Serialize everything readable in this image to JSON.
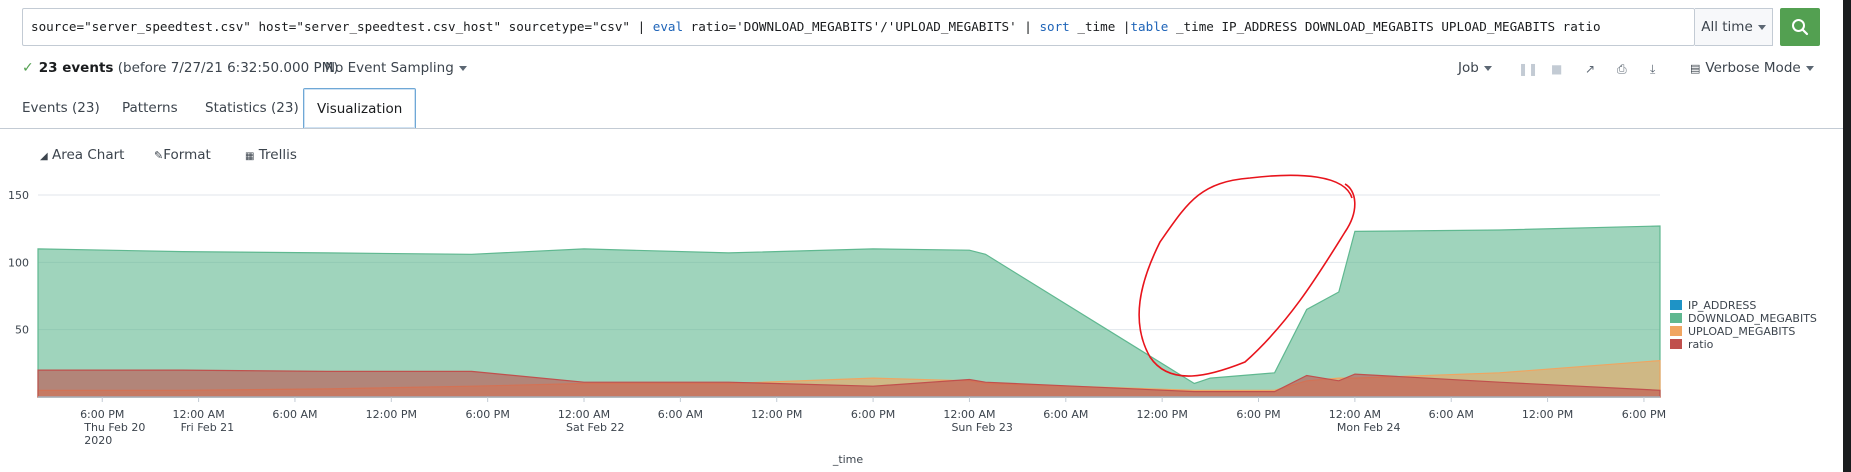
{
  "search": {
    "query_parts": [
      {
        "t": "source=\"server_speedtest.csv\" host=\"server_speedtest.csv_host\" sourcetype=\"csv\" | ",
        "kw": false
      },
      {
        "t": "eval",
        "kw": true
      },
      {
        "t": " ratio='DOWNLOAD_MEGABITS'/'UPLOAD_MEGABITS' | ",
        "kw": false
      },
      {
        "t": "sort",
        "kw": true
      },
      {
        "t": " _time |",
        "kw": false
      },
      {
        "t": "table",
        "kw": true
      },
      {
        "t": " _time IP_ADDRESS DOWNLOAD_MEGABITS UPLOAD_MEGABITS ratio",
        "kw": false
      }
    ],
    "time_range": "All time",
    "button_icon": "search-icon"
  },
  "status": {
    "event_count": "23 events",
    "event_before": "(before 7/27/21 6:32:50.000 PM)",
    "sampling": "No Event Sampling",
    "job_label": "Job",
    "mode_label": "Verbose Mode"
  },
  "tabs": {
    "events": "Events (23)",
    "patterns": "Patterns",
    "statistics": "Statistics (23)",
    "visualization": "Visualization"
  },
  "chart_toolbar": {
    "type_label": "Area Chart",
    "format_label": "Format",
    "trellis_label": "Trellis"
  },
  "colors": {
    "accent_green": "#53a051",
    "series_ip": "#1e93c6",
    "series_download": "#5fb890",
    "series_upload": "#f0a561",
    "series_ratio": "#c0504d",
    "annotation_red": "#e8141c"
  },
  "chart_data": {
    "type": "area",
    "xlabel": "_time",
    "ylabel": "",
    "ylim": [
      0,
      150
    ],
    "y_ticks": [
      "150",
      "100",
      "50"
    ],
    "x_ticks": [
      {
        "l1": "6:00 PM",
        "l2": "Thu Feb 20",
        "l3": "2020"
      },
      {
        "l1": "12:00 AM",
        "l2": "Fri Feb 21",
        "l3": ""
      },
      {
        "l1": "6:00 AM",
        "l2": "",
        "l3": ""
      },
      {
        "l1": "12:00 PM",
        "l2": "",
        "l3": ""
      },
      {
        "l1": "6:00 PM",
        "l2": "",
        "l3": ""
      },
      {
        "l1": "12:00 AM",
        "l2": "Sat Feb 22",
        "l3": ""
      },
      {
        "l1": "6:00 AM",
        "l2": "",
        "l3": ""
      },
      {
        "l1": "12:00 PM",
        "l2": "",
        "l3": ""
      },
      {
        "l1": "6:00 PM",
        "l2": "",
        "l3": ""
      },
      {
        "l1": "12:00 AM",
        "l2": "Sun Feb 23",
        "l3": ""
      },
      {
        "l1": "6:00 AM",
        "l2": "",
        "l3": ""
      },
      {
        "l1": "12:00 PM",
        "l2": "",
        "l3": ""
      },
      {
        "l1": "6:00 PM",
        "l2": "",
        "l3": ""
      },
      {
        "l1": "12:00 AM",
        "l2": "Mon Feb 24",
        "l3": ""
      },
      {
        "l1": "6:00 AM",
        "l2": "",
        "l3": ""
      },
      {
        "l1": "12:00 PM",
        "l2": "",
        "l3": ""
      },
      {
        "l1": "6:00 PM",
        "l2": "",
        "l3": ""
      }
    ],
    "x": [
      "2020-02-20 14:00",
      "2020-02-20 23:00",
      "2020-02-21 08:00",
      "2020-02-21 17:00",
      "2020-02-22 00:00",
      "2020-02-22 09:00",
      "2020-02-22 18:00",
      "2020-02-23 00:00",
      "2020-02-23 01:00",
      "2020-02-23 14:00",
      "2020-02-23 15:00",
      "2020-02-23 19:00",
      "2020-02-23 21:00",
      "2020-02-23 23:00",
      "2020-02-24 00:00",
      "2020-02-24 09:00",
      "2020-02-24 19:00"
    ],
    "series": [
      {
        "name": "IP_ADDRESS",
        "values": [
          0,
          0,
          0,
          0,
          0,
          0,
          0,
          0,
          0,
          0,
          0,
          0,
          0,
          0,
          0,
          0,
          0
        ]
      },
      {
        "name": "DOWNLOAD_MEGABITS",
        "values": [
          110,
          108,
          107,
          106,
          110,
          107,
          110,
          109,
          106,
          10,
          14,
          18,
          65,
          78,
          123,
          124,
          127
        ]
      },
      {
        "name": "UPLOAD_MEGABITS",
        "values": [
          5,
          5,
          6,
          8,
          10,
          10,
          14,
          12,
          10,
          5,
          5,
          5,
          12,
          14,
          14,
          18,
          27
        ]
      },
      {
        "name": "ratio",
        "values": [
          20,
          20,
          19,
          19,
          11,
          11,
          8,
          13,
          11,
          4,
          4,
          4,
          16,
          12,
          17,
          11,
          5
        ]
      }
    ],
    "legend_position": "right",
    "grid": true
  }
}
